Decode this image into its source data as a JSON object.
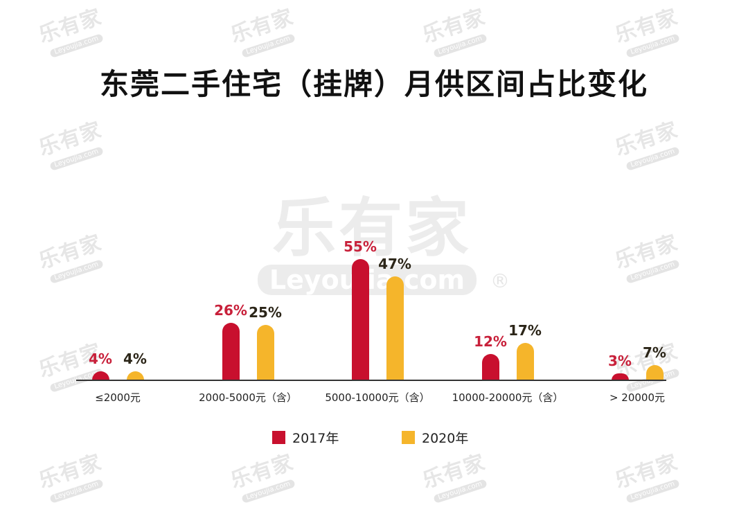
{
  "watermark": {
    "brand_cn": "乐有家",
    "brand_en": "Leyoujia.com",
    "registered": "®"
  },
  "colors": {
    "series_2017": "#c8102e",
    "series_2020": "#f5b52b",
    "label_2017": "#c8203a",
    "label_2020": "#2b2518"
  },
  "chart_data": {
    "type": "bar",
    "title": "东莞二手住宅（挂牌）月供区间占比变化",
    "xlabel": "",
    "ylabel": "",
    "categories": [
      "≤2000元",
      "2000-5000元（含）",
      "5000-10000元（含）",
      "10000-20000元（含）",
      "> 20000元"
    ],
    "series": [
      {
        "name": "2017年",
        "values": [
          4,
          26,
          55,
          12,
          3
        ],
        "labels": [
          "4%",
          "26%",
          "55%",
          "12%",
          "3%"
        ]
      },
      {
        "name": "2020年",
        "values": [
          4,
          25,
          47,
          17,
          7
        ],
        "labels": [
          "4%",
          "25%",
          "47%",
          "17%",
          "7%"
        ]
      }
    ],
    "unit": "%",
    "ylim": [
      0,
      60
    ],
    "grid": false,
    "legend_position": "bottom"
  }
}
